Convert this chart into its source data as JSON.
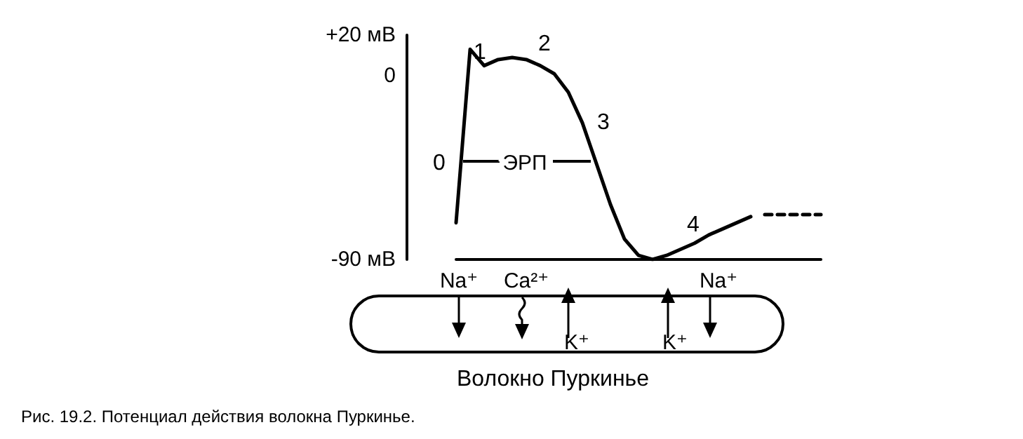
{
  "chart_data": {
    "type": "line",
    "categories": [
      null,
      null,
      null,
      null,
      null,
      null,
      null,
      null,
      null,
      null,
      null,
      null,
      null,
      null,
      null,
      null,
      null,
      null,
      null,
      null,
      null,
      null,
      null,
      null,
      null,
      null,
      null
    ],
    "series": [
      {
        "color": "#000000",
        "line_style": "solid",
        "values": [
          -72,
          13,
          5,
          8,
          9,
          8,
          5,
          1,
          -8,
          -23,
          -43,
          -63,
          -80,
          -88,
          -90,
          -88,
          -85,
          -82,
          -78,
          -75,
          -72,
          -69,
          null,
          null,
          null,
          null,
          null
        ]
      },
      {
        "color": "#000000",
        "line_style": "dashed",
        "values": [
          null,
          null,
          null,
          null,
          null,
          null,
          null,
          null,
          null,
          null,
          null,
          null,
          null,
          null,
          null,
          null,
          null,
          null,
          null,
          null,
          null,
          null,
          -68,
          -68,
          -68,
          -68,
          -68
        ]
      }
    ],
    "ylim": [
      -90,
      20
    ],
    "yticks": [
      {
        "value": -90,
        "label": "-90 мВ"
      },
      0,
      {
        "value": 20,
        "label": "+20 мВ"
      }
    ],
    "tick_labels": "y",
    "grid": false,
    "marker": "none",
    "annotations": [
      "0",
      "1",
      "2",
      "3",
      "4",
      "ЭРП",
      "Na⁺",
      "Ca²⁺",
      "K⁺",
      "K⁺",
      "Na⁺",
      "Волокно Пуркинье",
      "Рис. 19.2. Потенциал действия волокна Пуркинье."
    ]
  }
}
